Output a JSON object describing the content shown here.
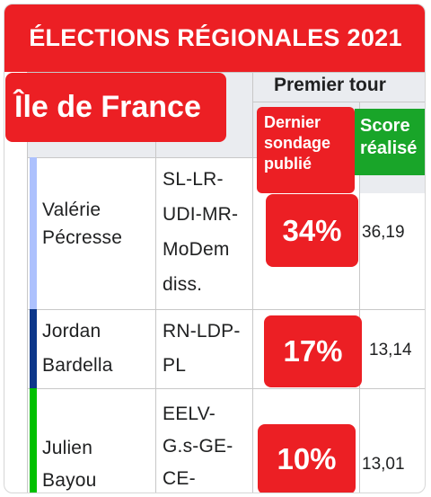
{
  "banner": {
    "title": "ÉLECTIONS RÉGIONALES 2021"
  },
  "region": {
    "name": "Île de France"
  },
  "table_header": {
    "round": "Premier tour",
    "poll_label_lines": [
      "Dernier",
      "sondage",
      "publié"
    ],
    "score_label_lines": [
      "Score",
      "réalisé"
    ]
  },
  "candidates": [
    {
      "name_lines": [
        "Valérie",
        "Pécresse"
      ],
      "list_lines": [
        "SL-LR-",
        "UDI-MR-",
        "MoDem",
        "diss."
      ],
      "last_poll": "34%",
      "score": "36,19",
      "party_color": "#adc1fd"
    },
    {
      "name_lines": [
        "Jordan",
        "Bardella"
      ],
      "list_lines": [
        "RN-LDP-",
        "PL"
      ],
      "last_poll": "17%",
      "score": "13,14",
      "party_color": "#0d378a"
    },
    {
      "name_lines": [
        "Julien",
        "Bayou"
      ],
      "list_lines": [
        "EELV-",
        "G.s-GE-",
        "CE-"
      ],
      "last_poll": "10%",
      "score": "13,01",
      "party_color": "#00c000"
    }
  ],
  "colors": {
    "accent_red": "#ec1f24",
    "accent_green": "#19a529",
    "header_gray": "#eaecf0"
  }
}
